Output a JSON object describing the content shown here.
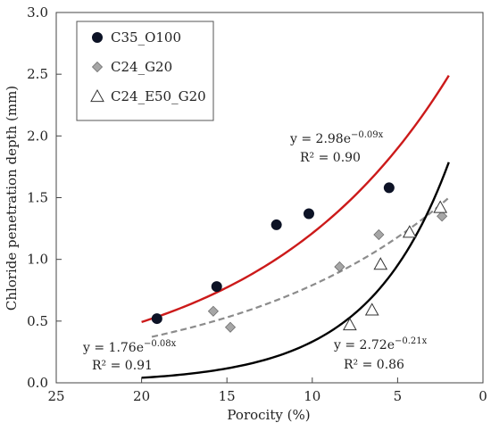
{
  "chart_data": {
    "type": "scatter",
    "title": "",
    "xlabel": "Porocity (%)",
    "ylabel": "Chloride penetration depth (mm)",
    "xlim": [
      25,
      0
    ],
    "ylim": [
      0,
      3.0
    ],
    "x_reversed": true,
    "x_ticks": [
      25,
      20,
      15,
      10,
      5,
      0
    ],
    "y_ticks": [
      "0.0",
      "0.5",
      "1.0",
      "1.5",
      "2.0",
      "2.5",
      "3.0"
    ],
    "grid": false,
    "legend_position": "top-left",
    "series": [
      {
        "name": "C35_O100",
        "marker": "circle",
        "color": "#0d1326",
        "points": [
          [
            19.1,
            0.52
          ],
          [
            15.6,
            0.78
          ],
          [
            12.1,
            1.28
          ],
          [
            10.2,
            1.37
          ],
          [
            5.5,
            1.58
          ]
        ],
        "fit": {
          "a": 2.98,
          "b": 0.09,
          "x_from": 20.0,
          "x_to": 2.0,
          "color": "#cc1a1a",
          "dash": false
        },
        "equation": "y = 2.98e",
        "exponent": "−0.09x",
        "r2": "R² = 0.90"
      },
      {
        "name": "C24_G20",
        "marker": "diamond",
        "color": "#a6a6a6",
        "points": [
          [
            15.8,
            0.58
          ],
          [
            14.8,
            0.45
          ],
          [
            8.4,
            0.94
          ],
          [
            6.1,
            1.2
          ],
          [
            2.4,
            1.35
          ]
        ],
        "fit": {
          "a": 1.76,
          "b": 0.08,
          "x_from": 19.4,
          "x_to": 2.0,
          "color": "#8c8c8c",
          "dash": true
        },
        "equation": "y = 1.76e",
        "exponent": "−0.08x",
        "r2": "R² = 0.91"
      },
      {
        "name": "C24_E50_G20",
        "marker": "triangle",
        "color": "#ffffff",
        "points": [
          [
            7.8,
            0.47
          ],
          [
            6.5,
            0.59
          ],
          [
            6.0,
            0.96
          ],
          [
            4.3,
            1.22
          ],
          [
            2.5,
            1.42
          ]
        ],
        "fit": {
          "a": 2.72,
          "b": 0.21,
          "x_from": 20.0,
          "x_to": 2.0,
          "color": "#000000",
          "dash": false
        },
        "equation": "y = 2.72e",
        "exponent": "−0.21x",
        "r2": "R² = 0.86"
      }
    ]
  }
}
